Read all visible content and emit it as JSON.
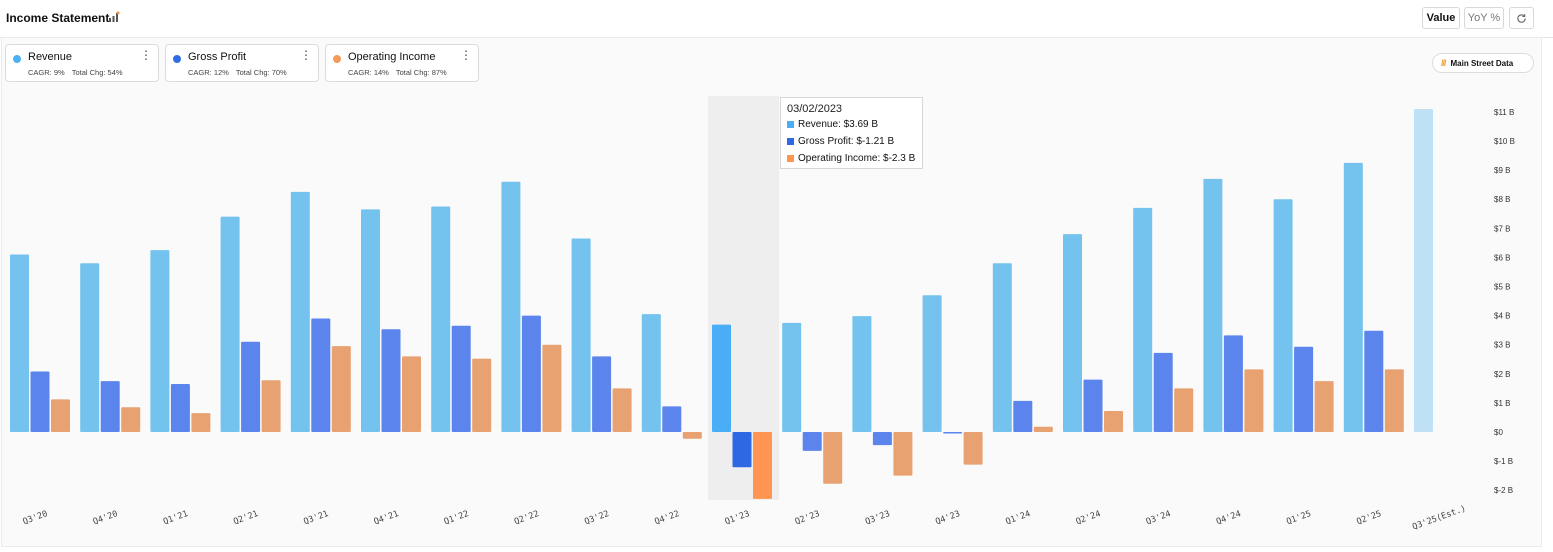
{
  "header": {
    "title": "Income Statement",
    "value_label": "Value",
    "yoy_label": "YoY %"
  },
  "legend_cards": [
    {
      "name": "Revenue",
      "cagr": "CAGR: 9%",
      "total": "Total Chg: 54%",
      "color": "#4bb0f5"
    },
    {
      "name": "Gross Profit",
      "cagr": "CAGR: 12%",
      "total": "Total Chg: 70%",
      "color": "#2f6ce6"
    },
    {
      "name": "Operating Income",
      "cagr": "CAGR: 14%",
      "total": "Total Chg: 87%",
      "color": "#f59a5a"
    }
  ],
  "main_street_label": "Main Street Data",
  "tooltip": {
    "date": "03/02/2023",
    "revenue": "Revenue: $3.69 B",
    "gross_profit": "Gross Profit: $-1.21 B",
    "operating_income": "Operating Income: $-2.3 B"
  },
  "chart_data": {
    "type": "bar",
    "categories": [
      "Q3'20",
      "Q4'20",
      "Q1'21",
      "Q2'21",
      "Q3'21",
      "Q4'21",
      "Q1'22",
      "Q2'22",
      "Q3'22",
      "Q4'22",
      "Q1'23",
      "Q2'23",
      "Q3'23",
      "Q4'23",
      "Q1'24",
      "Q2'24",
      "Q3'24",
      "Q4'24",
      "Q1'25",
      "Q2'25",
      "Q3'25(Est.)"
    ],
    "series": [
      {
        "name": "Revenue",
        "color": "#74c3ef",
        "values": [
          6.1,
          5.8,
          6.25,
          7.4,
          8.25,
          7.65,
          7.75,
          8.6,
          6.65,
          4.05,
          3.69,
          3.75,
          3.98,
          4.7,
          5.8,
          6.8,
          7.7,
          8.7,
          8.0,
          9.25,
          11.1
        ]
      },
      {
        "name": "Gross Profit",
        "color": "#5b85ec",
        "values": [
          2.08,
          1.75,
          1.65,
          3.1,
          3.9,
          3.53,
          3.65,
          4.0,
          2.6,
          0.88,
          -1.21,
          -0.65,
          -0.45,
          -0.05,
          1.07,
          1.8,
          2.72,
          3.32,
          2.93,
          3.48,
          null
        ]
      },
      {
        "name": "Operating Income",
        "color": "#e8a272",
        "values": [
          1.12,
          0.85,
          0.65,
          1.78,
          2.95,
          2.6,
          2.52,
          3.0,
          1.5,
          -0.23,
          -2.3,
          -1.78,
          -1.5,
          -1.12,
          0.18,
          0.72,
          1.5,
          2.15,
          1.75,
          2.15,
          null
        ]
      }
    ],
    "highlight_index": 10,
    "highlight_colors": [
      "#4aaef7",
      "#2f68e3",
      "#ff9551"
    ],
    "estimate_color": "#bfe1f6",
    "y_ticks": [
      "$-2 B",
      "$-1 B",
      "$0",
      "$1 B",
      "$2 B",
      "$3 B",
      "$4 B",
      "$5 B",
      "$6 B",
      "$7 B",
      "$8 B",
      "$9 B",
      "$10 B",
      "$11 B"
    ],
    "y_tick_values": [
      -2,
      -1,
      0,
      1,
      2,
      3,
      4,
      5,
      6,
      7,
      8,
      9,
      10,
      11
    ],
    "ylim": [
      -2,
      11
    ],
    "y_axis_position": "right",
    "grid": false
  }
}
